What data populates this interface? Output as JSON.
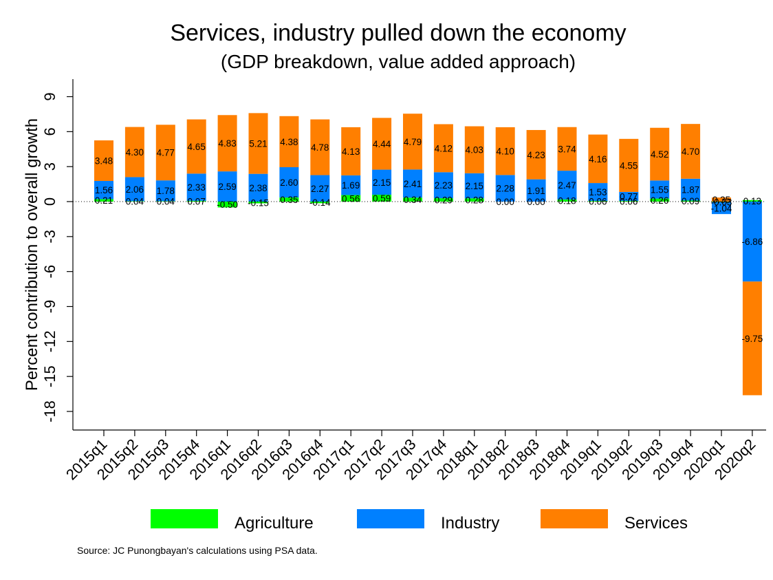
{
  "title": "Services, industry pulled down the economy",
  "subtitle": "(GDP breakdown, value added approach)",
  "source": "Source: JC Punongbayan's calculations using PSA data.",
  "colors": {
    "agriculture": "#00ff00",
    "industry": "#0080ff",
    "services": "#ff7f00",
    "background": "#ffffff",
    "axis": "#000000"
  },
  "chart_data": {
    "type": "bar",
    "stacked": true,
    "title": "Services, industry pulled down the economy",
    "subtitle": "(GDP breakdown, value added approach)",
    "ylabel": "Percent contribution to overall growth",
    "xlabel": "",
    "ylim": [
      -19,
      11
    ],
    "yticks": [
      9,
      6,
      3,
      0,
      -3,
      -6,
      -9,
      -12,
      -15,
      -18
    ],
    "zero_line": "dotted",
    "grid": false,
    "legend_position": "bottom",
    "categories": [
      "2015q1",
      "2015q2",
      "2015q3",
      "2015q4",
      "2016q1",
      "2016q2",
      "2016q3",
      "2016q4",
      "2017q1",
      "2017q2",
      "2017q3",
      "2017q4",
      "2018q1",
      "2018q2",
      "2018q3",
      "2018q4",
      "2019q1",
      "2019q2",
      "2019q3",
      "2019q4",
      "2020q1",
      "2020q2"
    ],
    "series": [
      {
        "name": "Agriculture",
        "values": [
          0.21,
          0.04,
          0.04,
          0.07,
          -0.5,
          -0.15,
          0.35,
          -0.14,
          0.56,
          0.59,
          0.34,
          0.29,
          0.28,
          0.0,
          0.0,
          0.18,
          0.06,
          0.06,
          0.26,
          0.09,
          -0.03,
          0.13
        ],
        "labels": [
          "0.21",
          "0.04",
          "0.04",
          "0.07",
          "-0.50",
          "-0.15",
          "0.35",
          "-0.14",
          "0.56",
          "0.59",
          "0.34",
          "0.29",
          "0.28",
          "0.00",
          "0.00",
          "0.18",
          "0.06",
          "0.06",
          "0.26",
          "0.09",
          "-0.03",
          "0.13"
        ]
      },
      {
        "name": "Industry",
        "values": [
          1.56,
          2.06,
          1.78,
          2.33,
          2.59,
          2.38,
          2.6,
          2.27,
          1.69,
          2.15,
          2.41,
          2.23,
          2.15,
          2.28,
          1.91,
          2.47,
          1.53,
          0.77,
          1.55,
          1.87,
          -1.04,
          -6.86
        ],
        "labels": [
          "1.56",
          "2.06",
          "1.78",
          "2.33",
          "2.59",
          "2.38",
          "2.60",
          "2.27",
          "1.69",
          "2.15",
          "2.41",
          "2.23",
          "2.15",
          "2.28",
          "1.91",
          "2.47",
          "1.53",
          "0.77",
          "1.55",
          "1.87",
          "-1.04",
          "-6.86"
        ]
      },
      {
        "name": "Services",
        "values": [
          3.48,
          4.3,
          4.77,
          4.65,
          4.83,
          5.21,
          4.38,
          4.78,
          4.13,
          4.44,
          4.79,
          4.12,
          4.03,
          4.1,
          4.23,
          3.74,
          4.16,
          4.55,
          4.52,
          4.7,
          0.35,
          -9.75
        ],
        "labels": [
          "3.48",
          "4.30",
          "4.77",
          "4.65",
          "4.83",
          "5.21",
          "4.38",
          "4.78",
          "4.13",
          "4.44",
          "4.79",
          "4.12",
          "4.03",
          "4.10",
          "4.23",
          "3.74",
          "4.16",
          "4.55",
          "4.52",
          "4.70",
          "0.35",
          "-9.75"
        ]
      }
    ]
  }
}
